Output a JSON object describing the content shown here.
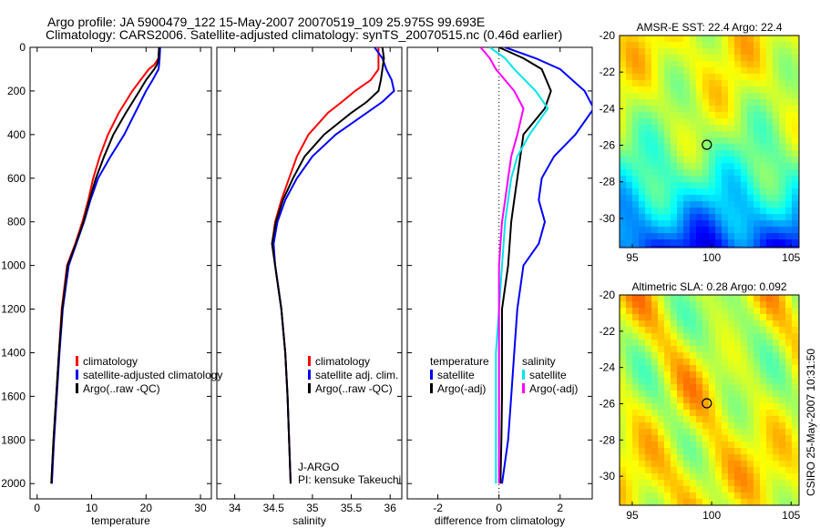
{
  "title_line1": "Argo profile: JA 5900479_122 15-May-2007 20070519_109 25.975S 99.693E",
  "title_line2": "Climatology: CARS2006. Satellite-adjusted climatology: synTS_20070515.nc (0.46d earlier)",
  "side_label": "CSIRO 25-May-2007 10:31:50",
  "colors": {
    "red": "#ff0000",
    "blue": "#0000ff",
    "black": "#000000",
    "cyan": "#00e5ee",
    "magenta": "#ff00ff"
  },
  "chart_data": [
    {
      "type": "line",
      "name": "temperature",
      "xlabel": "temperature",
      "ylabel": "",
      "xlim": [
        -1.3,
        32
      ],
      "ylim": [
        2070,
        0
      ],
      "xticks": [
        "0",
        "10",
        "20",
        "30"
      ],
      "xtickvals": [
        0,
        10,
        20,
        30
      ],
      "yticks": [
        "0",
        "200",
        "400",
        "600",
        "800",
        "1000",
        "1200",
        "1400",
        "1600",
        "1800",
        "2000"
      ],
      "legend": [
        "climatology",
        "satellite-adjusted climatology",
        "Argo(..raw -QC)"
      ],
      "depth": [
        0,
        50,
        80,
        100,
        150,
        200,
        300,
        400,
        500,
        600,
        700,
        800,
        900,
        1000,
        1200,
        1400,
        1600,
        1800,
        2000
      ],
      "series": [
        {
          "name": "climatology",
          "color": "red",
          "values": [
            22.4,
            22.3,
            21.5,
            20.5,
            19,
            17.5,
            15,
            13,
            11.5,
            10.3,
            9.4,
            8.3,
            7,
            5.5,
            4.5,
            4,
            3.5,
            3,
            2.6
          ]
        },
        {
          "name": "satellite-adjusted climatology",
          "color": "blue",
          "values": [
            22.6,
            22.5,
            22.4,
            22.3,
            21.2,
            20,
            18,
            16,
            13.5,
            11.2,
            9.8,
            8.6,
            7.2,
            5.8,
            4.7,
            4.1,
            3.6,
            3.1,
            2.7
          ]
        },
        {
          "name": "Argo",
          "color": "black",
          "values": [
            22.4,
            22.3,
            22,
            21.5,
            20,
            18.8,
            16.3,
            14,
            12.3,
            10.8,
            9.6,
            8.5,
            7.1,
            5.6,
            4.6,
            4,
            3.5,
            3,
            2.6
          ]
        }
      ]
    },
    {
      "type": "line",
      "name": "salinity",
      "xlabel": "salinity",
      "xlim": [
        33.77,
        36.15
      ],
      "ylim": [
        2070,
        0
      ],
      "xticks": [
        "34",
        "34.5",
        "35",
        "35.5",
        "36"
      ],
      "xtickvals": [
        34,
        34.5,
        35,
        35.5,
        36
      ],
      "legend": [
        "climatology",
        "satellite adj. clim.",
        "Argo(..raw -QC)"
      ],
      "annotation": [
        "J-ARGO",
        "PI: kensuke Takeuchi"
      ],
      "depth": [
        0,
        50,
        100,
        150,
        200,
        250,
        300,
        400,
        500,
        600,
        700,
        800,
        900,
        1000,
        1200,
        1400,
        1600,
        1800,
        2000
      ],
      "series": [
        {
          "name": "climatology",
          "color": "red",
          "values": [
            35.85,
            35.85,
            35.85,
            35.75,
            35.55,
            35.38,
            35.2,
            34.95,
            34.8,
            34.7,
            34.6,
            34.52,
            34.48,
            34.52,
            34.6,
            34.65,
            34.68,
            34.7,
            34.72
          ]
        },
        {
          "name": "satellite adj. clim.",
          "color": "blue",
          "values": [
            35.8,
            35.9,
            35.95,
            36.02,
            36.05,
            35.9,
            35.7,
            35.3,
            35.0,
            34.8,
            34.65,
            34.55,
            34.5,
            34.52,
            34.6,
            34.65,
            34.68,
            34.7,
            34.72
          ]
        },
        {
          "name": "Argo",
          "color": "black",
          "values": [
            35.9,
            35.92,
            35.9,
            35.88,
            35.85,
            35.7,
            35.5,
            35.15,
            34.9,
            34.75,
            34.62,
            34.53,
            34.48,
            34.52,
            34.6,
            34.65,
            34.68,
            34.7,
            34.72
          ]
        }
      ]
    },
    {
      "type": "line",
      "name": "difference",
      "xlabel": "difference from climatology",
      "xlim": [
        -3,
        3.05
      ],
      "ylim": [
        2070,
        0
      ],
      "xticks": [
        "-2",
        "0",
        "2"
      ],
      "xtickvals": [
        -2,
        0,
        2
      ],
      "legend_temperature": [
        "temperature",
        "satellite",
        "Argo(-adj)"
      ],
      "legend_salinity": [
        "salinity",
        "satellite",
        "Argo(-adj)"
      ],
      "depth": [
        0,
        50,
        100,
        200,
        280,
        400,
        500,
        600,
        700,
        800,
        900,
        1000,
        1200,
        1400,
        1600,
        1800,
        2000
      ],
      "series": [
        {
          "name": "temperature satellite",
          "color": "blue",
          "values": [
            0.2,
            1.2,
            2,
            2.8,
            3.1,
            2.5,
            1.8,
            1.4,
            1.3,
            1.5,
            1.3,
            0.8,
            0.6,
            0.5,
            0.4,
            0.3,
            0.1
          ]
        },
        {
          "name": "temperature Argo(-adj)",
          "color": "black",
          "values": [
            0,
            0.8,
            1.4,
            1.7,
            1.5,
            0.8,
            0.7,
            0.6,
            0.5,
            0.4,
            0.35,
            0.3,
            0.1,
            0.1,
            0.1,
            0.08,
            0.05
          ]
        },
        {
          "name": "salinity satellite",
          "color": "cyan",
          "values": [
            -0.3,
            0.2,
            0.5,
            1.2,
            1.6,
            1.0,
            0.6,
            0.4,
            0.3,
            0.2,
            0.15,
            0.1,
            0,
            -0.1,
            -0.1,
            -0.1,
            -0.1
          ]
        },
        {
          "name": "salinity Argo(-adj)",
          "color": "magenta",
          "values": [
            -0.6,
            -0.3,
            -0.1,
            0.5,
            0.8,
            0.6,
            0.4,
            0.3,
            0.2,
            0.1,
            0.05,
            0,
            0,
            0,
            0,
            0,
            0
          ]
        }
      ]
    },
    {
      "type": "heatmap",
      "name": "sst-map",
      "title": "AMSR-E SST: 22.4 Argo: 22.4",
      "xlim": [
        94.2,
        105.5
      ],
      "ylim": [
        -31.6,
        -20
      ],
      "xticks": [
        "95",
        "100",
        "105"
      ],
      "yticks": [
        "-20",
        "-22",
        "-24",
        "-26",
        "-28",
        "-30"
      ],
      "marker": [
        99.693,
        -25.975
      ]
    },
    {
      "type": "heatmap",
      "name": "sla-map",
      "title": "Altimetric SLA: 0.28 Argo: 0.092",
      "xlim": [
        94.2,
        105.5
      ],
      "ylim": [
        -31.6,
        -20
      ],
      "xticks": [
        "95",
        "100",
        "105"
      ],
      "yticks": [
        "-20",
        "-22",
        "-24",
        "-26",
        "-28",
        "-30"
      ],
      "marker": [
        99.693,
        -25.975
      ]
    }
  ]
}
